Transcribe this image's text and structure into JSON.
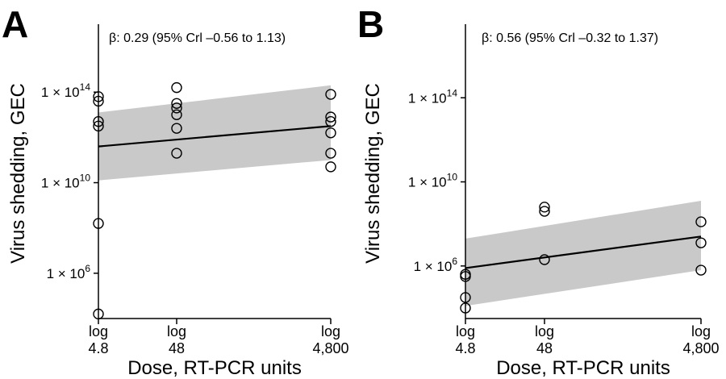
{
  "chart_data": [
    {
      "type": "scatter",
      "panel_label": "A",
      "annotation": "β: 0.29 (95% Crl –0.56 to 1.13)",
      "xlabel": "Dose, RT-PCR units",
      "ylabel": "Virus shedding, GEC",
      "y_scale": "log10",
      "ylim_log10": [
        4.0,
        17.0
      ],
      "x_categories": [
        {
          "key": "4.8",
          "line1": "log",
          "line2": "4.8",
          "value": 4.8
        },
        {
          "key": "48",
          "line1": "log",
          "line2": "48",
          "value": 48
        },
        {
          "key": "4800",
          "line1": "log",
          "line2": "4,800",
          "value": 4800
        }
      ],
      "y_ticks": [
        {
          "coef": "1 × 10",
          "exp": "6",
          "log10": 6
        },
        {
          "coef": "1 × 10",
          "exp": "10",
          "log10": 10
        },
        {
          "coef": "1 × 10",
          "exp": "14",
          "log10": 14
        }
      ],
      "points": [
        {
          "x": "4.8",
          "log10_y": 13.8
        },
        {
          "x": "4.8",
          "log10_y": 13.6
        },
        {
          "x": "4.8",
          "log10_y": 12.7
        },
        {
          "x": "4.8",
          "log10_y": 12.5
        },
        {
          "x": "4.8",
          "log10_y": 8.2
        },
        {
          "x": "4.8",
          "log10_y": 4.2
        },
        {
          "x": "48",
          "log10_y": 14.2
        },
        {
          "x": "48",
          "log10_y": 13.5
        },
        {
          "x": "48",
          "log10_y": 13.3
        },
        {
          "x": "48",
          "log10_y": 13.0
        },
        {
          "x": "48",
          "log10_y": 12.4
        },
        {
          "x": "48",
          "log10_y": 11.3
        },
        {
          "x": "4800",
          "log10_y": 13.9
        },
        {
          "x": "4800",
          "log10_y": 12.9
        },
        {
          "x": "4800",
          "log10_y": 12.7
        },
        {
          "x": "4800",
          "log10_y": 12.2
        },
        {
          "x": "4800",
          "log10_y": 11.3
        },
        {
          "x": "4800",
          "log10_y": 10.7
        }
      ],
      "fit_line": {
        "start_log10_y": 11.6,
        "end_log10_y": 12.5
      },
      "ci_band": {
        "start_lower": 10.1,
        "start_upper": 13.1,
        "end_lower": 11.0,
        "end_upper": 14.3
      }
    },
    {
      "type": "scatter",
      "panel_label": "B",
      "annotation": "β: 0.56 (95% Crl –0.32 to 1.37)",
      "xlabel": "Dose, RT-PCR units",
      "ylabel": "Virus shedding, GEC",
      "y_scale": "log10",
      "ylim_log10": [
        3.5,
        17.5
      ],
      "x_categories": [
        {
          "key": "4.8",
          "line1": "log",
          "line2": "4.8",
          "value": 4.8
        },
        {
          "key": "48",
          "line1": "log",
          "line2": "48",
          "value": 48
        },
        {
          "key": "4800",
          "line1": "log",
          "line2": "4,800",
          "value": 4800
        }
      ],
      "y_ticks": [
        {
          "coef": "1 × 10",
          "exp": "6",
          "log10": 6
        },
        {
          "coef": "1 × 10",
          "exp": "10",
          "log10": 10
        },
        {
          "coef": "1 × 10",
          "exp": "14",
          "log10": 14
        }
      ],
      "points": [
        {
          "x": "4.8",
          "log10_y": 5.6
        },
        {
          "x": "4.8",
          "log10_y": 5.5
        },
        {
          "x": "4.8",
          "log10_y": 4.5
        },
        {
          "x": "4.8",
          "log10_y": 4.0
        },
        {
          "x": "48",
          "log10_y": 8.8
        },
        {
          "x": "48",
          "log10_y": 8.6
        },
        {
          "x": "48",
          "log10_y": 6.3
        },
        {
          "x": "4800",
          "log10_y": 8.1
        },
        {
          "x": "4800",
          "log10_y": 7.1
        },
        {
          "x": "4800",
          "log10_y": 5.8
        }
      ],
      "fit_line": {
        "start_log10_y": 5.9,
        "end_log10_y": 7.4
      },
      "ci_band": {
        "start_lower": 4.1,
        "start_upper": 7.3,
        "end_lower": 5.8,
        "end_upper": 9.1
      }
    }
  ]
}
